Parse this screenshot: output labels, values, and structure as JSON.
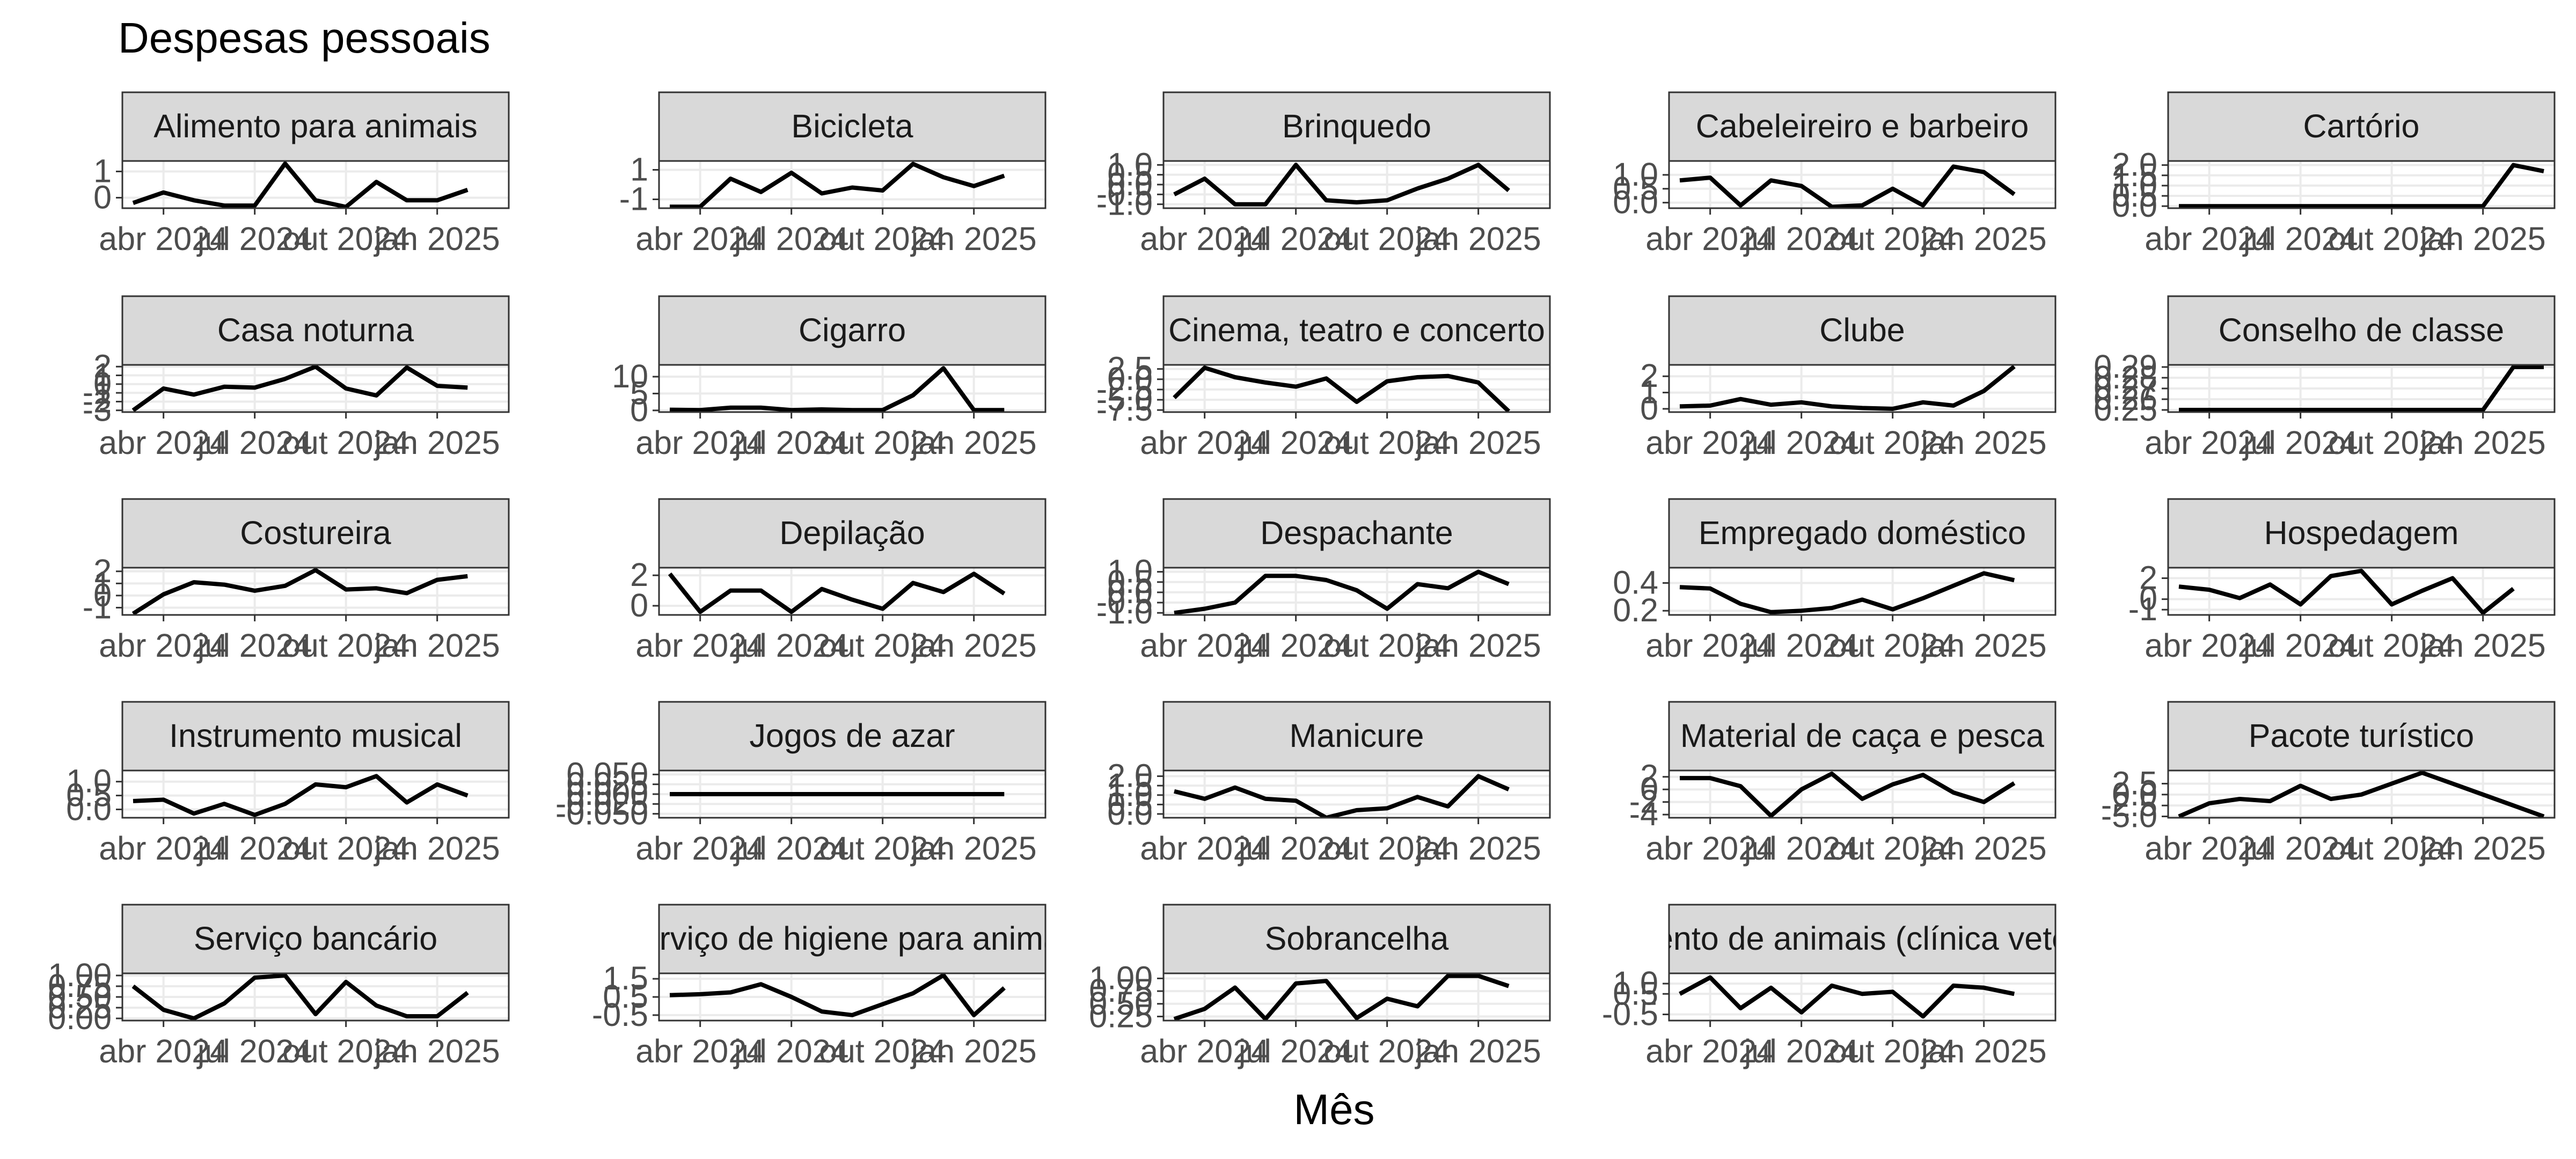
{
  "chart_data": {
    "type": "line",
    "title": "Despesas pessoais",
    "xlabel": "Mês",
    "ylabel": "",
    "grid": true,
    "x": [
      "2024-03",
      "2024-04",
      "2024-05",
      "2024-06",
      "2024-07",
      "2024-08",
      "2024-09",
      "2024-10",
      "2024-11",
      "2024-12",
      "2025-01",
      "2025-02",
      "2025-03"
    ],
    "x_tick_labels": [
      "abr 2024",
      "jul 2024",
      "out 2024",
      "jan 2025"
    ],
    "facets": [
      {
        "name": "Alimento para animais",
        "y_ticks": [
          "0",
          "1"
        ],
        "ylim": [
          -0.4,
          1.4
        ],
        "values": [
          -0.2,
          0.2,
          -0.1,
          -0.3,
          -0.3,
          1.3,
          -0.1,
          -0.35,
          0.6,
          -0.1,
          -0.1,
          0.3,
          null
        ]
      },
      {
        "name": "Bicicleta",
        "y_ticks": [
          "-1",
          "1"
        ],
        "ylim": [
          -1.6,
          1.6
        ],
        "values": [
          -1.5,
          -1.5,
          0.4,
          -0.5,
          0.8,
          -0.6,
          -0.2,
          -0.4,
          1.4,
          0.5,
          -0.1,
          0.6,
          null
        ]
      },
      {
        "name": "Brinquedo",
        "y_ticks": [
          "-1.0",
          "-0.5",
          "0.0",
          "0.5",
          "1.0"
        ],
        "ylim": [
          -1.2,
          1.2
        ],
        "values": [
          -0.5,
          0.3,
          -1.0,
          -1.0,
          1.0,
          -0.8,
          -0.9,
          -0.8,
          -0.2,
          0.3,
          1.0,
          -0.3,
          null
        ]
      },
      {
        "name": "Cabeleireiro e barbeiro",
        "y_ticks": [
          "0.0",
          "0.5",
          "1.0"
        ],
        "ylim": [
          -0.2,
          1.5
        ],
        "values": [
          0.8,
          0.9,
          -0.1,
          0.8,
          0.6,
          -0.15,
          -0.1,
          0.5,
          -0.1,
          1.3,
          1.1,
          0.3,
          null
        ]
      },
      {
        "name": "Cartório",
        "y_ticks": [
          "0.0",
          "0.5",
          "1.0",
          "1.5",
          "2.0"
        ],
        "ylim": [
          -0.1,
          2.2
        ],
        "values": [
          0,
          0,
          0,
          0,
          0,
          0,
          0,
          0,
          0,
          0,
          0,
          2.0,
          1.7
        ]
      },
      {
        "name": "Casa noturna",
        "y_ticks": [
          "-3",
          "-2",
          "-1",
          "0",
          "1",
          "2"
        ],
        "ylim": [
          -3.2,
          2.2
        ],
        "values": [
          -3,
          -0.5,
          -1.2,
          -0.3,
          -0.4,
          0.6,
          2.0,
          -0.5,
          -1.3,
          1.9,
          -0.2,
          -0.4,
          null
        ]
      },
      {
        "name": "Cigarro",
        "y_ticks": [
          "0",
          "5",
          "10"
        ],
        "ylim": [
          -0.5,
          13.5
        ],
        "values": [
          0.2,
          0.1,
          0.8,
          0.8,
          0.1,
          0.3,
          0.1,
          0.1,
          4.5,
          12.5,
          0.1,
          0.1,
          null
        ]
      },
      {
        "name": "Cinema, teatro e concerto",
        "y_ticks": [
          "-7.5",
          "-5.0",
          "-2.5",
          "0.0",
          "2.5"
        ],
        "ylim": [
          -8.0,
          3.5
        ],
        "values": [
          -4.5,
          2.8,
          0.5,
          -0.8,
          -1.8,
          0.2,
          -5.5,
          -0.5,
          0.5,
          0.8,
          -0.8,
          -7.8,
          null
        ]
      },
      {
        "name": "Clube",
        "y_ticks": [
          "0",
          "1",
          "2"
        ],
        "ylim": [
          -0.2,
          2.7
        ],
        "values": [
          0.15,
          0.2,
          0.6,
          0.25,
          0.4,
          0.15,
          0.05,
          0.0,
          0.4,
          0.2,
          1.1,
          2.6,
          null
        ]
      },
      {
        "name": "Conselho de classe",
        "y_ticks": [
          "0.25",
          "0.26",
          "0.27",
          "0.28",
          "0.29"
        ],
        "ylim": [
          0.248,
          0.292
        ],
        "values": [
          0.25,
          0.25,
          0.25,
          0.25,
          0.25,
          0.25,
          0.25,
          0.25,
          0.25,
          0.25,
          0.25,
          0.29,
          0.29
        ]
      },
      {
        "name": "Costureira",
        "y_ticks": [
          "-1",
          "0",
          "1",
          "2"
        ],
        "ylim": [
          -1.6,
          2.3
        ],
        "values": [
          -1.5,
          0.1,
          1.1,
          0.9,
          0.4,
          0.8,
          2.1,
          0.5,
          0.6,
          0.2,
          1.3,
          1.6,
          null
        ]
      },
      {
        "name": "Depilação",
        "y_ticks": [
          "0",
          "2"
        ],
        "ylim": [
          -0.6,
          2.5
        ],
        "values": [
          2.1,
          -0.4,
          1.0,
          1.0,
          -0.4,
          1.1,
          0.4,
          -0.2,
          1.5,
          0.9,
          2.1,
          0.8,
          null
        ]
      },
      {
        "name": "Despachante",
        "y_ticks": [
          "-1.0",
          "-0.5",
          "0.0",
          "0.5",
          "1.0"
        ],
        "ylim": [
          -1.1,
          1.2
        ],
        "values": [
          -1.0,
          -0.8,
          -0.5,
          0.8,
          0.8,
          0.6,
          0.1,
          -0.8,
          0.4,
          0.2,
          1.0,
          0.4,
          null
        ]
      },
      {
        "name": "Empregado doméstico",
        "y_ticks": [
          "0.2",
          "0.4"
        ],
        "ylim": [
          0.17,
          0.51
        ],
        "values": [
          0.37,
          0.36,
          0.25,
          0.19,
          0.2,
          0.22,
          0.28,
          0.21,
          0.29,
          0.38,
          0.47,
          0.42,
          null
        ]
      },
      {
        "name": "Hospedagem",
        "y_ticks": [
          "-1",
          "0",
          "2"
        ],
        "ylim": [
          -1.5,
          3.0
        ],
        "values": [
          1.2,
          0.9,
          0.1,
          1.4,
          -0.5,
          2.2,
          2.7,
          -0.5,
          0.8,
          2.0,
          -1.3,
          1.0,
          null
        ]
      },
      {
        "name": "Instrumento musical",
        "y_ticks": [
          "0.0",
          "0.5",
          "1.0"
        ],
        "ylim": [
          -0.3,
          1.4
        ],
        "values": [
          0.3,
          0.35,
          -0.15,
          0.2,
          -0.2,
          0.2,
          0.9,
          0.8,
          1.2,
          0.25,
          0.9,
          0.5,
          null
        ]
      },
      {
        "name": "Jogos de azar",
        "y_ticks": [
          "-0.050",
          "-0.025",
          "0.000",
          "0.025",
          "0.050"
        ],
        "ylim": [
          -0.06,
          0.06
        ],
        "values": [
          0,
          0,
          0,
          0,
          0,
          0,
          0,
          0,
          0,
          0,
          0,
          0,
          null
        ]
      },
      {
        "name": "Manicure",
        "y_ticks": [
          "0.0",
          "0.5",
          "1.0",
          "1.5",
          "2.0"
        ],
        "ylim": [
          -0.2,
          2.3
        ],
        "values": [
          1.2,
          0.8,
          1.4,
          0.8,
          0.7,
          -0.2,
          0.2,
          0.3,
          0.9,
          0.4,
          2.0,
          1.3,
          null
        ]
      },
      {
        "name": "Material de caça e pesca",
        "y_ticks": [
          "-4",
          "-2",
          "0",
          "2"
        ],
        "ylim": [
          -4.5,
          3.0
        ],
        "values": [
          1.8,
          1.8,
          0.5,
          -4.2,
          0.0,
          2.5,
          -1.5,
          0.8,
          2.3,
          -0.5,
          -2.0,
          1.0,
          null
        ]
      },
      {
        "name": "Pacote turístico",
        "y_ticks": [
          "-5.0",
          "-2.5",
          "0.0",
          "2.5"
        ],
        "ylim": [
          -5.3,
          5.5
        ],
        "values": [
          -5.0,
          -2.0,
          -1.0,
          -1.5,
          2.0,
          -1.0,
          0.0,
          2.5,
          5.0,
          2.5,
          0.0,
          -2.5,
          -5.0
        ]
      },
      {
        "name": "Serviço bancário",
        "y_ticks": [
          "0.00",
          "0.25",
          "0.50",
          "0.75",
          "1.00"
        ],
        "ylim": [
          -0.05,
          1.05
        ],
        "values": [
          0.75,
          0.2,
          0.0,
          0.35,
          0.95,
          1.0,
          0.1,
          0.85,
          0.3,
          0.05,
          0.05,
          0.6,
          null
        ]
      },
      {
        "name": "Serviço de higiene para animais",
        "y_ticks": [
          "-0.5",
          "0.5",
          "1.5"
        ],
        "ylim": [
          -0.8,
          1.8
        ],
        "values": [
          0.6,
          0.65,
          0.75,
          1.2,
          0.5,
          -0.3,
          -0.5,
          0.1,
          0.7,
          1.7,
          -0.5,
          1.0,
          null
        ]
      },
      {
        "name": "Sobrancelha",
        "y_ticks": [
          "0.25",
          "0.50",
          "0.75",
          "1.00"
        ],
        "ylim": [
          0.17,
          1.1
        ],
        "values": [
          0.2,
          0.4,
          0.82,
          0.2,
          0.9,
          0.95,
          0.22,
          0.6,
          0.45,
          1.05,
          1.05,
          0.85,
          null
        ]
      },
      {
        "name": "Tratamento de animais (clínica veterinária)",
        "y_ticks": [
          "-0.5",
          "0.5",
          "1.0"
        ],
        "ylim": [
          -0.8,
          1.5
        ],
        "values": [
          0.5,
          1.3,
          -0.2,
          0.8,
          -0.4,
          0.9,
          0.5,
          0.6,
          -0.6,
          0.9,
          0.8,
          0.5,
          null
        ]
      }
    ]
  }
}
